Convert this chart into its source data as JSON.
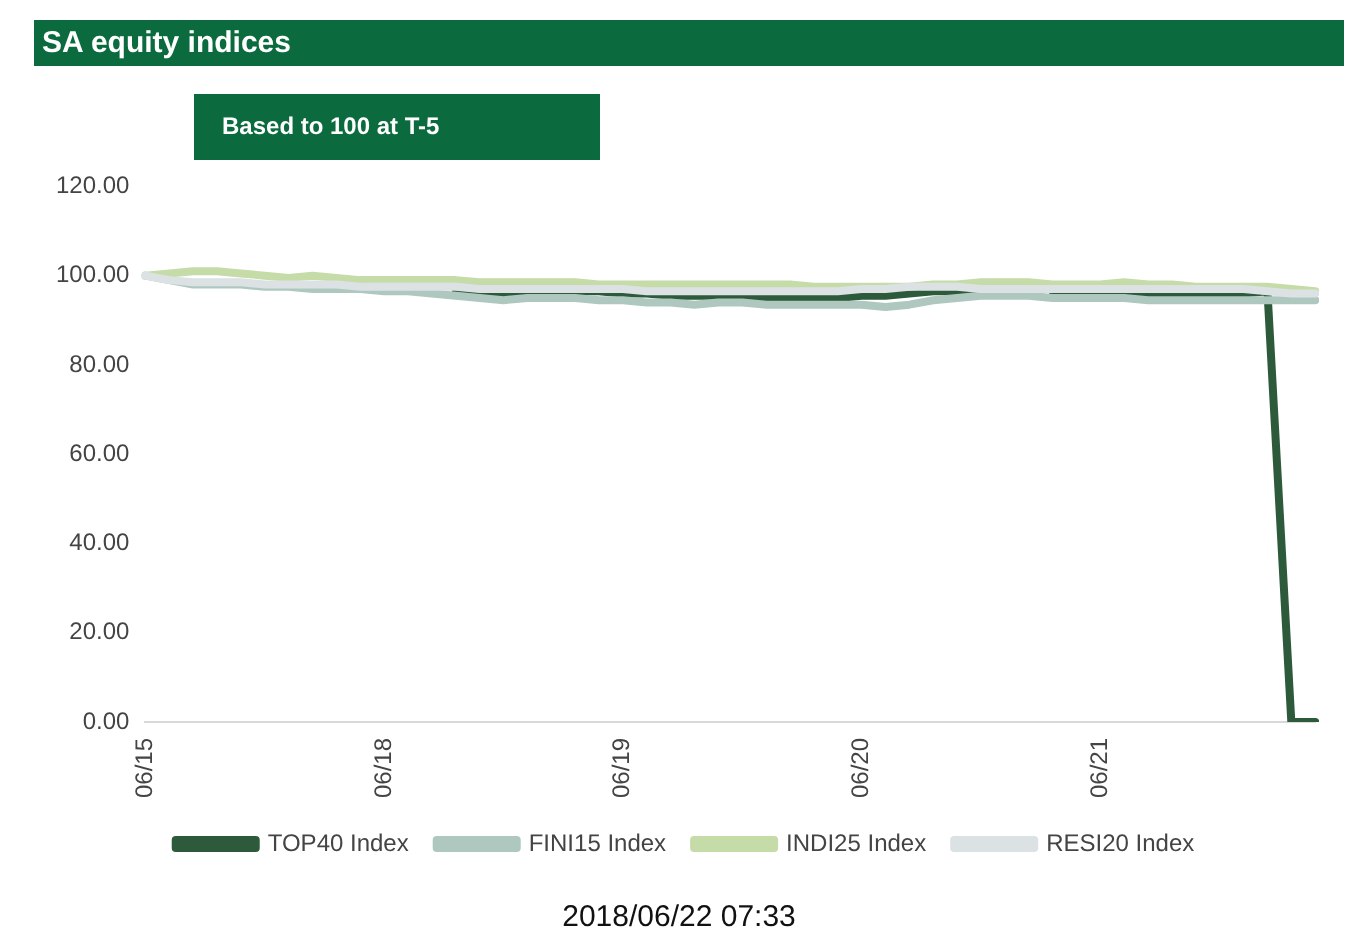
{
  "chart_data": {
    "type": "line",
    "title": "SA equity indices",
    "subtitle": "Based to 100 at T-5",
    "annotations": [
      "2018/06/22 07:33"
    ],
    "categories": [
      "06/15",
      null,
      null,
      null,
      null,
      null,
      null,
      null,
      null,
      null,
      "06/18",
      null,
      null,
      null,
      null,
      null,
      null,
      null,
      null,
      null,
      "06/19",
      null,
      null,
      null,
      null,
      null,
      null,
      null,
      null,
      null,
      "06/20",
      null,
      null,
      null,
      null,
      null,
      null,
      null,
      null,
      null,
      "06/21",
      null,
      null,
      null,
      null,
      null,
      null,
      null,
      null,
      null
    ],
    "series": [
      {
        "name": "TOP40 Index",
        "color": "#2d5a3a",
        "values": [
          null,
          null,
          null,
          null,
          null,
          null,
          null,
          null,
          null,
          null,
          null,
          null,
          null,
          96.5,
          96,
          96,
          96.5,
          96.5,
          96.5,
          96.5,
          96,
          96,
          95.5,
          95.5,
          95.5,
          95.5,
          95,
          95,
          95,
          95,
          95.5,
          95.5,
          96,
          96.5,
          96.5,
          96.5,
          null,
          null,
          96.5,
          96.5,
          96,
          96,
          96,
          96,
          96,
          96,
          96,
          96.5,
          0,
          0
        ]
      },
      {
        "name": "FINI15 Index",
        "color": "#aec8c0",
        "values": [
          100,
          99,
          98,
          98,
          98,
          97.5,
          97.5,
          97,
          97,
          97,
          96.5,
          96.5,
          96,
          95.5,
          95,
          94.5,
          95,
          95,
          95,
          94.5,
          94.5,
          94,
          94,
          93.5,
          94,
          94,
          93.5,
          93.5,
          93.5,
          93.5,
          93.5,
          93,
          93.5,
          94.5,
          95,
          95.5,
          95.5,
          95.5,
          95,
          95,
          95,
          95,
          94.5,
          94.5,
          94.5,
          94.5,
          94.5,
          94.5,
          94.5,
          94.5
        ]
      },
      {
        "name": "INDI25 Index",
        "color": "#c5dca8",
        "values": [
          100,
          100.5,
          101,
          101,
          100.5,
          100,
          99.5,
          100,
          99.5,
          99,
          99,
          99,
          99,
          99,
          98.5,
          98.5,
          98.5,
          98.5,
          98.5,
          98,
          98,
          98,
          98,
          98,
          98,
          98,
          98,
          98,
          97.5,
          97.5,
          97.5,
          97.5,
          97.5,
          98,
          98,
          98.5,
          98.5,
          98.5,
          98,
          98,
          98,
          98.5,
          98,
          98,
          97.5,
          97.5,
          97.5,
          97.5,
          97,
          96.5
        ]
      },
      {
        "name": "RESI20 Index",
        "color": "#dce1e3",
        "values": [
          100,
          99,
          98.5,
          98.5,
          98.5,
          98,
          98,
          98,
          98,
          97.5,
          97.5,
          97.5,
          97.5,
          97.5,
          97,
          97,
          97,
          97,
          97,
          97,
          97,
          96.5,
          96.5,
          96.5,
          96.5,
          96.5,
          96.5,
          96.5,
          96.5,
          96.5,
          97,
          97,
          97.5,
          97.5,
          97.5,
          97,
          97,
          97,
          97,
          97,
          97,
          97,
          97,
          97,
          97,
          97,
          97,
          96.5,
          96,
          96
        ]
      }
    ],
    "ylim": [
      0,
      120
    ],
    "yticks": [
      {
        "value": 0,
        "label": "0.00"
      },
      {
        "value": 20,
        "label": "20.00"
      },
      {
        "value": 40,
        "label": "40.00"
      },
      {
        "value": 60,
        "label": "60.00"
      },
      {
        "value": 80,
        "label": "80.00"
      },
      {
        "value": 100,
        "label": "100.00"
      },
      {
        "value": 120,
        "label": "120.00"
      }
    ],
    "grid": false,
    "legend": "bottom",
    "marker": "none",
    "line_style": "solid"
  }
}
